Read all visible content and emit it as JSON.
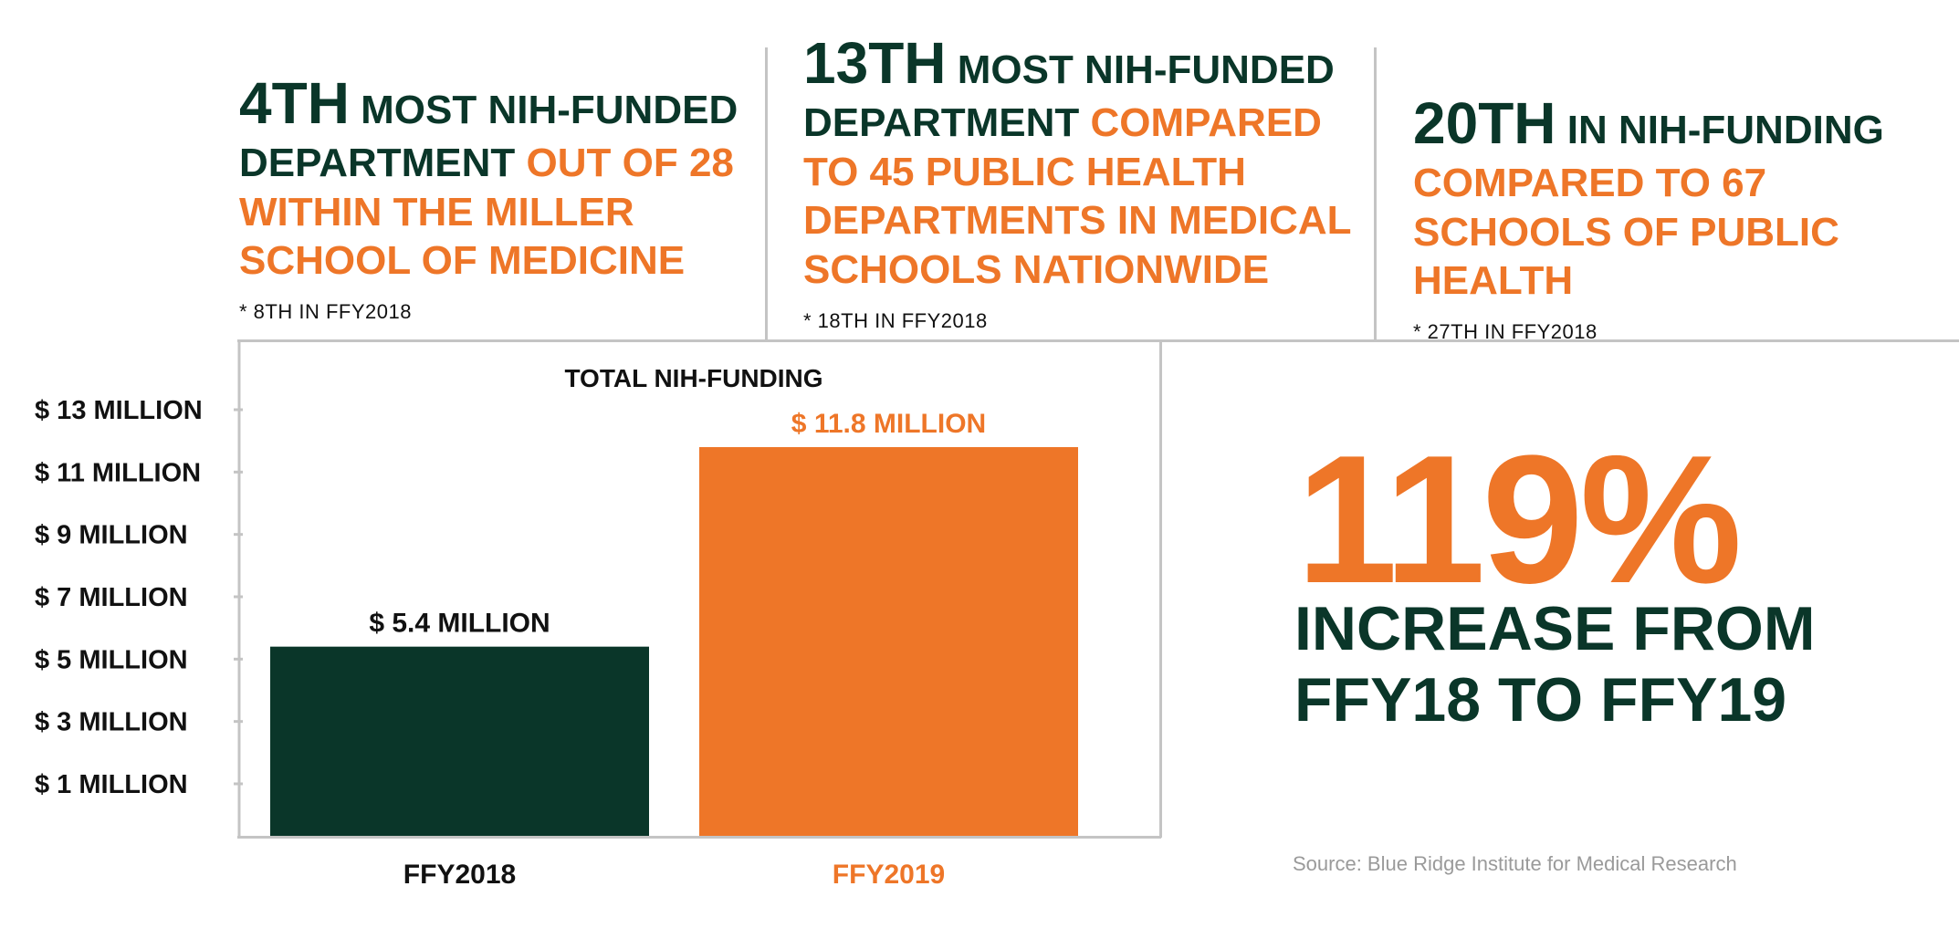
{
  "stats": [
    {
      "rank": "4TH",
      "dark_text": "MOST NIH-FUNDED DEPARTMENT",
      "orange_text": "OUT OF 28 WITHIN THE MILLER SCHOOL OF MEDICINE",
      "note": "* 8TH IN FFY2018"
    },
    {
      "rank": "13TH",
      "dark_text": "MOST NIH-FUNDED DEPARTMENT",
      "orange_text": "COMPARED TO 45 PUBLIC HEALTH DEPARTMENTS IN MEDICAL SCHOOLS NATIONWIDE",
      "note": "* 18TH IN FFY2018"
    },
    {
      "rank": "20TH",
      "dark_text": "IN NIH-FUNDING",
      "orange_text": "COMPARED TO 67 SCHOOLS OF PUBLIC HEALTH",
      "note": "* 27TH IN FFY2018"
    }
  ],
  "highlight": {
    "percent": "119%",
    "caption_line1": "INCREASE FROM",
    "caption_line2": "FFY18 TO FFY19"
  },
  "source": "Source: Blue Ridge Institute for Medical Research",
  "colors": {
    "dark_green": "#0a3629",
    "orange": "#ee7628",
    "rule_gray": "#c4c4c4"
  },
  "chart_data": {
    "type": "bar",
    "title": "TOTAL NIH-FUNDING",
    "categories": [
      "FFY2018",
      "FFY2019"
    ],
    "values": [
      5.4,
      11.8
    ],
    "value_labels": [
      "$ 5.4 MILLION",
      "$ 11.8 MILLION"
    ],
    "bar_colors": [
      "#0a3629",
      "#ee7628"
    ],
    "category_label_colors": [
      "#111111",
      "#ee7628"
    ],
    "value_label_colors": [
      "#111111",
      "#ee7628"
    ],
    "y_ticks": [
      1,
      3,
      5,
      7,
      9,
      11,
      13
    ],
    "y_tick_labels": [
      "$ 1 MILLION",
      "$ 3 MILLION",
      "$ 5 MILLION",
      "$ 7 MILLION",
      "$ 9 MILLION",
      "$ 11 MILLION",
      "$ 13 MILLION"
    ],
    "ylim": [
      0,
      14
    ],
    "xlabel": "",
    "ylabel": "",
    "grid": false,
    "legend": "none"
  }
}
